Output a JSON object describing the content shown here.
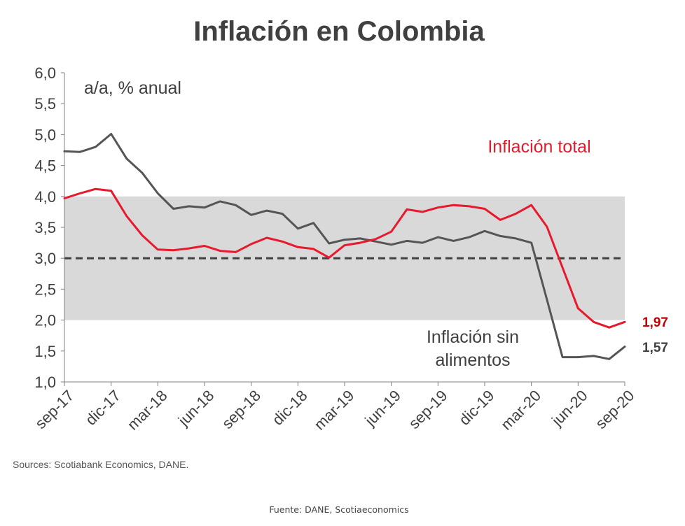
{
  "chart_data": {
    "type": "line",
    "title": "Inflación en Colombia",
    "unit_label": "a/a, % anual",
    "ylim": [
      1.0,
      6.0
    ],
    "yticks": [
      "1,0",
      "1,5",
      "2,0",
      "2,5",
      "3,0",
      "3,5",
      "4,0",
      "4,5",
      "5,0",
      "5,5",
      "6,0"
    ],
    "x_tick_labels": [
      "sep-17",
      "dic-17",
      "mar-18",
      "jun-18",
      "sep-18",
      "dic-18",
      "mar-19",
      "jun-19",
      "sep-19",
      "dic-19",
      "mar-20",
      "jun-20",
      "sep-20"
    ],
    "x": [
      "sep-17",
      "oct-17",
      "nov-17",
      "dic-17",
      "ene-18",
      "feb-18",
      "mar-18",
      "abr-18",
      "may-18",
      "jun-18",
      "jul-18",
      "ago-18",
      "sep-18",
      "oct-18",
      "nov-18",
      "dic-18",
      "ene-19",
      "feb-19",
      "mar-19",
      "abr-19",
      "may-19",
      "jun-19",
      "jul-19",
      "ago-19",
      "sep-19",
      "oct-19",
      "nov-19",
      "dic-19",
      "ene-20",
      "feb-20",
      "mar-20",
      "abr-20",
      "may-20",
      "jun-20",
      "jul-20",
      "ago-20",
      "sep-20"
    ],
    "target_range": [
      2.0,
      4.0
    ],
    "target": 3.0,
    "series": [
      {
        "name": "Inflación total",
        "color": "#e8192c",
        "values": [
          3.97,
          4.05,
          4.12,
          4.09,
          3.68,
          3.37,
          3.14,
          3.13,
          3.16,
          3.2,
          3.12,
          3.1,
          3.23,
          3.33,
          3.27,
          3.18,
          3.15,
          3.01,
          3.21,
          3.25,
          3.31,
          3.43,
          3.79,
          3.75,
          3.82,
          3.86,
          3.84,
          3.8,
          3.62,
          3.72,
          3.86,
          3.51,
          2.85,
          2.19,
          1.97,
          1.88,
          1.97
        ],
        "end_label": "1,97"
      },
      {
        "name": "Inflación sin alimentos",
        "color": "#555555",
        "values": [
          4.73,
          4.72,
          4.8,
          5.01,
          4.61,
          4.38,
          4.05,
          3.8,
          3.84,
          3.82,
          3.92,
          3.86,
          3.7,
          3.77,
          3.72,
          3.48,
          3.57,
          3.24,
          3.3,
          3.32,
          3.27,
          3.22,
          3.28,
          3.25,
          3.34,
          3.28,
          3.34,
          3.44,
          3.36,
          3.32,
          3.25,
          2.33,
          1.4,
          1.4,
          1.42,
          1.37,
          1.57
        ],
        "end_label": "1,57"
      }
    ],
    "annotations": {
      "total": "Inflación total",
      "core_line1": "Inflación sin",
      "core_line2": "alimentos"
    },
    "source": "Sources: Scotiabank Economics, DANE.",
    "footer": "Fuente: DANE, Scotiaeconomics"
  }
}
